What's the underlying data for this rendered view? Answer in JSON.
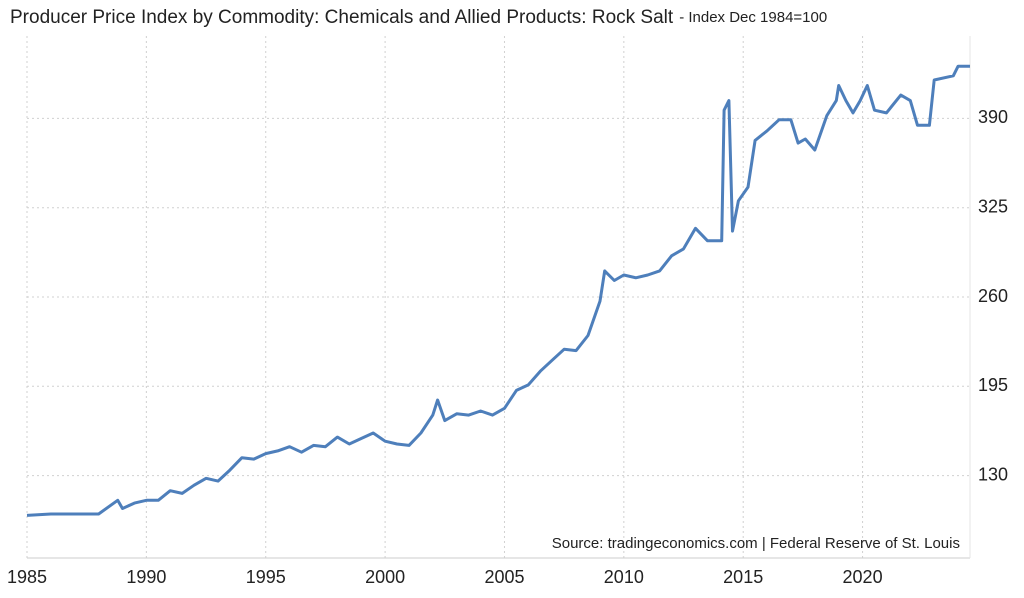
{
  "chart_data": {
    "type": "line",
    "title": "Producer Price Index by Commodity: Chemicals and Allied Products: Rock Salt",
    "subtitle": "- Index Dec 1984=100",
    "annotation": "Source: tradingeconomics.com | Federal Reserve of St. Louis",
    "x": [
      1985,
      1986,
      1987,
      1988,
      1988.8,
      1989,
      1989.5,
      1990,
      1990.5,
      1991,
      1991.5,
      1992,
      1992.5,
      1993,
      1993.5,
      1994,
      1994.5,
      1995,
      1995.5,
      1996,
      1996.5,
      1997,
      1997.5,
      1998,
      1998.5,
      1999,
      1999.5,
      2000,
      2000.5,
      2001,
      2001.5,
      2002,
      2002.2,
      2002.5,
      2003,
      2003.5,
      2004,
      2004.5,
      2005,
      2005.5,
      2006,
      2006.5,
      2007,
      2007.5,
      2008,
      2008.5,
      2009,
      2009.2,
      2009.6,
      2010,
      2010.5,
      2011,
      2011.5,
      2012,
      2012.5,
      2013,
      2013.5,
      2014.1,
      2014.2,
      2014.4,
      2014.55,
      2014.8,
      2015.2,
      2015.5,
      2016,
      2016.5,
      2017,
      2017.3,
      2017.6,
      2018,
      2018.5,
      2018.9,
      2019,
      2019.3,
      2019.6,
      2019.9,
      2020.2,
      2020.5,
      2021,
      2021.6,
      2022,
      2022.3,
      2022.8,
      2023,
      2023.8,
      2024,
      2024.5
    ],
    "series": [
      {
        "name": "Rock Salt",
        "color": "#4e7fbb",
        "values": [
          101,
          102,
          102,
          102,
          112,
          106,
          110,
          112,
          112,
          119,
          117,
          123,
          128,
          126,
          134,
          143,
          142,
          146,
          148,
          151,
          147,
          152,
          151,
          158,
          153,
          157,
          161,
          155,
          153,
          152,
          161,
          174,
          185,
          170,
          175,
          174,
          177,
          174,
          179,
          192,
          196,
          206,
          214,
          222,
          221,
          232,
          257,
          279,
          272,
          276,
          274,
          276,
          279,
          290,
          295,
          310,
          301,
          301,
          396,
          403,
          308,
          330,
          340,
          374,
          381,
          389,
          389,
          372,
          375,
          367,
          392,
          403,
          414,
          403,
          394,
          403,
          414,
          396,
          394,
          407,
          403,
          385,
          385,
          418,
          421,
          428,
          428
        ]
      }
    ],
    "xlim": [
      1985,
      2024.5
    ],
    "xticks": [
      1985,
      1990,
      1995,
      2000,
      2005,
      2010,
      2015,
      2020
    ],
    "ylim": [
      70,
      450
    ],
    "yticks": [
      130,
      195,
      260,
      325,
      390
    ],
    "grid": true
  }
}
